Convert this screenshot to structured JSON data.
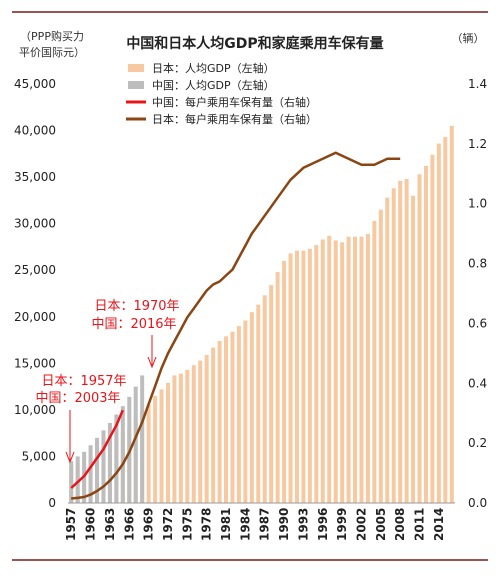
{
  "chart_data": {
    "type": "bar+line",
    "title": "中国和日本人均GDP和家庭乘用车保有量",
    "left_axis_label_line1": "（PPP购买力",
    "left_axis_label_line2": "平价国际元）",
    "right_axis_label": "（辆）",
    "left_ylim": [
      0,
      45000
    ],
    "left_ticks": [
      "0",
      "5,000",
      "10,000",
      "15,000",
      "20,000",
      "25,000",
      "30,000",
      "35,000",
      "40,000",
      "45,000"
    ],
    "right_ylim": [
      0,
      1.4
    ],
    "right_ticks": [
      "0.0",
      "0.2",
      "0.4",
      "0.6",
      "0.8",
      "1.0",
      "1.2",
      "1.4"
    ],
    "x_ticks": [
      "1957",
      "1960",
      "1963",
      "1966",
      "1969",
      "1972",
      "1975",
      "1978",
      "1981",
      "1984",
      "1987",
      "1990",
      "1993",
      "1996",
      "1999",
      "2002",
      "2005",
      "2008",
      "2011",
      "2014"
    ],
    "legend": [
      {
        "label": "日本：人均GDP（左轴）",
        "type": "bar",
        "color": "#F7C9A0"
      },
      {
        "label": "中国：人均GDP（左轴）",
        "type": "bar",
        "color": "#BDBDBD"
      },
      {
        "label": "中国：每户乘用车保有量（右轴）",
        "type": "line",
        "color": "#E8141A"
      },
      {
        "label": "日本：每户乘用车保有量（右轴）",
        "type": "line",
        "color": "#8B4513"
      }
    ],
    "annotations": [
      {
        "line1": "日本：1957年",
        "line2": "中国：2003年"
      },
      {
        "line1": "日本：1970年",
        "line2": "中国：2016年"
      }
    ],
    "japan_gdp": {
      "years_start": 1957,
      "values": [
        4000,
        4300,
        4600,
        5000,
        5500,
        6000,
        6500,
        7000,
        7600,
        8200,
        9000,
        9800,
        10600,
        11500,
        12200,
        12900,
        13700,
        13900,
        14300,
        14800,
        15300,
        15900,
        16700,
        17400,
        17900,
        18400,
        19000,
        19600,
        20500,
        21300,
        22300,
        23400,
        24800,
        26000,
        26800,
        27100,
        27100,
        27300,
        27700,
        28300,
        28700,
        28200,
        28000,
        28600,
        28600,
        28600,
        28900,
        30300,
        31500,
        32800,
        33800,
        34600,
        34800,
        33000,
        35300,
        36200,
        37400,
        38600,
        39300,
        40500
      ]
    },
    "china_gdp": {
      "years_start": 1957,
      "values": [
        4500,
        5000,
        5500,
        6200,
        7000,
        7800,
        8600,
        9500,
        10400,
        11400,
        12500,
        13700
      ]
    },
    "china_cars": {
      "years_start": 1957,
      "values": [
        0.05,
        0.07,
        0.09,
        0.12,
        0.15,
        0.18,
        0.22,
        0.26,
        0.31
      ]
    },
    "japan_cars": {
      "years_start": 1957,
      "values": [
        0.015,
        0.017,
        0.02,
        0.028,
        0.04,
        0.055,
        0.075,
        0.1,
        0.13,
        0.17,
        0.22,
        0.27,
        0.33,
        0.39,
        0.45,
        0.5,
        0.54,
        0.58,
        0.62,
        0.65,
        0.68,
        0.71,
        0.73,
        0.74,
        0.76,
        0.78,
        0.82,
        0.86,
        0.9,
        0.93,
        0.96,
        0.99,
        1.02,
        1.05,
        1.08,
        1.1,
        1.12,
        1.13,
        1.14,
        1.15,
        1.16,
        1.17,
        1.16,
        1.15,
        1.14,
        1.13,
        1.13,
        1.13,
        1.14,
        1.15,
        1.15,
        1.15
      ]
    }
  }
}
